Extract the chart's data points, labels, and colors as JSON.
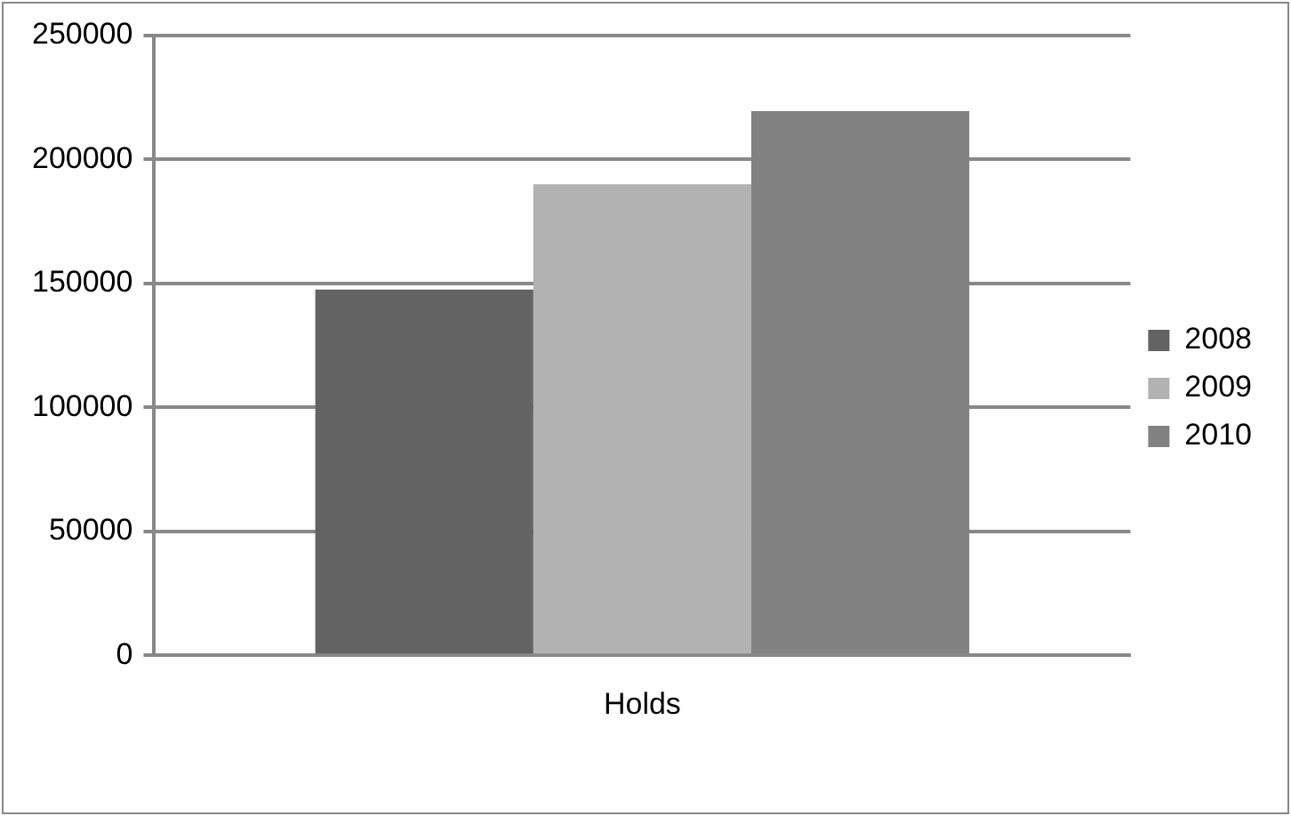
{
  "chart_data": {
    "type": "bar",
    "categories": [
      "Holds"
    ],
    "series": [
      {
        "name": "2008",
        "color": "#636363",
        "values": [
          147500
        ]
      },
      {
        "name": "2009",
        "color": "#b2b2b2",
        "values": [
          190000
        ]
      },
      {
        "name": "2010",
        "color": "#828282",
        "values": [
          219500
        ]
      }
    ],
    "ylim": [
      0,
      250000
    ],
    "yticks": [
      0,
      50000,
      100000,
      150000,
      200000,
      250000
    ],
    "grid": "y",
    "legend": "right"
  }
}
